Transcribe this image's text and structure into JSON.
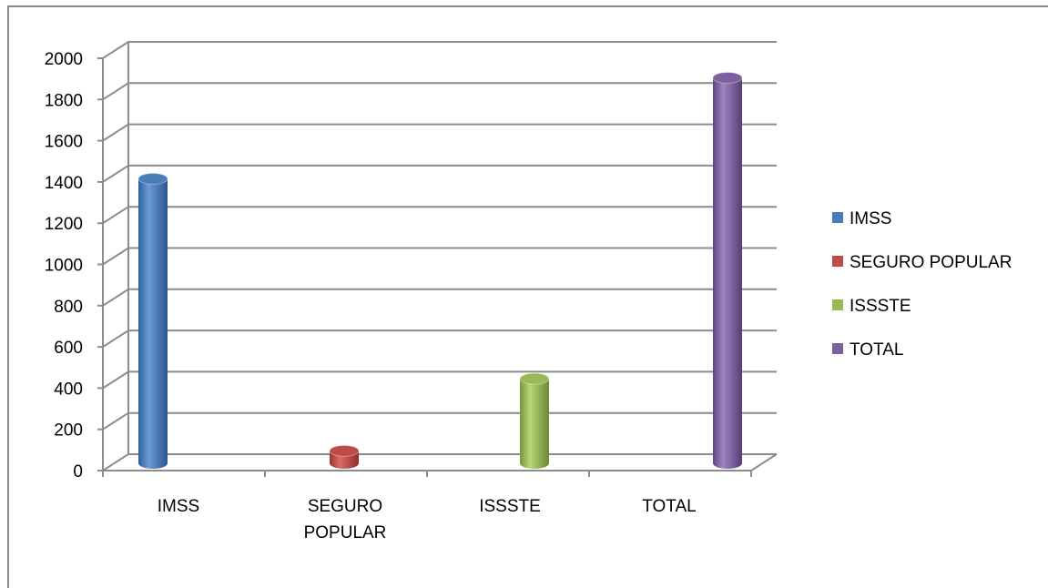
{
  "chart_data": {
    "type": "bar",
    "categories": [
      "IMSS",
      "SEGURO POPULAR",
      "ISSSTE",
      "TOTAL"
    ],
    "category_lines": [
      [
        "IMSS"
      ],
      [
        "SEGURO",
        "POPULAR"
      ],
      [
        "ISSSTE"
      ],
      [
        "TOTAL"
      ]
    ],
    "values": [
      1380,
      60,
      410,
      1870
    ],
    "ylim": [
      0,
      2000
    ],
    "y_ticks": [
      0,
      200,
      400,
      600,
      800,
      1000,
      1200,
      1400,
      1600,
      1800,
      2000
    ],
    "grid": true,
    "legend_position": "right",
    "series": [
      {
        "name": "IMSS",
        "color": "#4a7ebb"
      },
      {
        "name": "SEGURO POPULAR",
        "color": "#be4b48"
      },
      {
        "name": "ISSSTE",
        "color": "#98b954"
      },
      {
        "name": "TOTAL",
        "color": "#7d60a0"
      }
    ],
    "title": "",
    "xlabel": "",
    "ylabel": ""
  }
}
